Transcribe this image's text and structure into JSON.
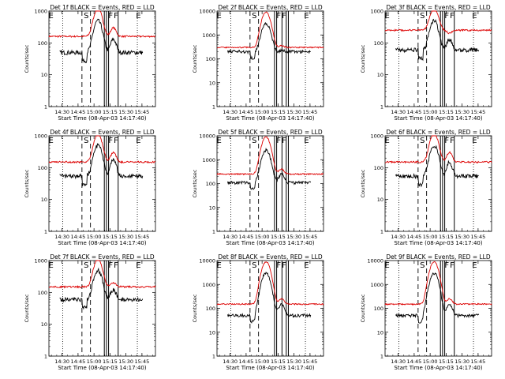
{
  "colors": {
    "events": "#000000",
    "lld": "#dd0000",
    "axes": "#000000",
    "background": "#ffffff"
  },
  "panel_titles": [
    "Det 1f BLACK = Events, RED = LLD",
    "Det 2f BLACK = Events, RED = LLD",
    "Det 3f BLACK = Events, RED = LLD",
    "Det 4f BLACK = Events, RED = LLD",
    "Det 5f BLACK = Events, RED = LLD",
    "Det 6f BLACK = Events, RED = LLD",
    "Det 7f BLACK = Events, RED = LLD",
    "Det 8f BLACK = Events, RED = LLD",
    "Det 9f BLACK = Events, RED = LLD"
  ],
  "chart_data": {
    "type": "line",
    "panel_layout": "3x3 grid",
    "xlabel": "Start Time (08-Apr-03 14:17:40)",
    "ylabel": "Counts/sec",
    "x_tick_labels": [
      "14:30",
      "14:45",
      "15:00",
      "15:15",
      "15:30",
      "15:45"
    ],
    "x_tick_minutes": [
      12.33,
      27.33,
      42.33,
      57.33,
      72.33,
      87.33
    ],
    "xlim_minutes_after_start": [
      0,
      100
    ],
    "y_scale": "log",
    "y_tick_labels_short": [
      "1",
      "10",
      "100",
      "1000"
    ],
    "y_tick_labels_long": [
      "1",
      "10",
      "100",
      "1000",
      "10000"
    ],
    "interval_markers": [
      "E",
      "S",
      "F",
      "F",
      "E"
    ],
    "marker_minutes": {
      "dotted": [
        13,
        83
      ],
      "dashed": [
        31,
        39
      ],
      "solid_default": [
        52,
        54,
        56,
        65
      ],
      "solid_panels_2_5_8": [
        54,
        56,
        61,
        65,
        67
      ]
    },
    "series_names": [
      "Events",
      "LLD"
    ],
    "panels": [
      {
        "ylim": [
          1,
          1000
        ],
        "base_lld": 160,
        "base_evt": 50,
        "flare_lld": 1200,
        "flare_evt": 500,
        "bump_lld": 300,
        "bump_evt": 130
      },
      {
        "ylim": [
          1,
          10000
        ],
        "base_lld": 300,
        "base_evt": 200,
        "flare_lld": 9000,
        "flare_evt": 3000,
        "bump_lld": 350,
        "bump_evt": 220
      },
      {
        "ylim": [
          1,
          1000
        ],
        "base_lld": 250,
        "base_evt": 60,
        "flare_lld": 1200,
        "flare_evt": 500,
        "bump_lld": 200,
        "bump_evt": 130
      },
      {
        "ylim": [
          1,
          1000
        ],
        "base_lld": 150,
        "base_evt": 55,
        "flare_lld": 1100,
        "flare_evt": 500,
        "bump_lld": 300,
        "bump_evt": 180
      },
      {
        "ylim": [
          1,
          10000
        ],
        "base_lld": 250,
        "base_evt": 110,
        "flare_lld": 9000,
        "flare_evt": 2500,
        "bump_lld": 400,
        "bump_evt": 250
      },
      {
        "ylim": [
          1,
          1000
        ],
        "base_lld": 150,
        "base_evt": 55,
        "flare_lld": 1200,
        "flare_evt": 500,
        "bump_lld": 300,
        "bump_evt": 150
      },
      {
        "ylim": [
          1,
          1000
        ],
        "base_lld": 150,
        "base_evt": 60,
        "flare_lld": 1100,
        "flare_evt": 500,
        "bump_lld": 200,
        "bump_evt": 120
      },
      {
        "ylim": [
          1,
          10000
        ],
        "base_lld": 150,
        "base_evt": 50,
        "flare_lld": 9000,
        "flare_evt": 3000,
        "bump_lld": 250,
        "bump_evt": 150
      },
      {
        "ylim": [
          1,
          10000
        ],
        "base_lld": 150,
        "base_evt": 50,
        "flare_lld": 9000,
        "flare_evt": 3000,
        "bump_lld": 250,
        "bump_evt": 150
      }
    ]
  }
}
